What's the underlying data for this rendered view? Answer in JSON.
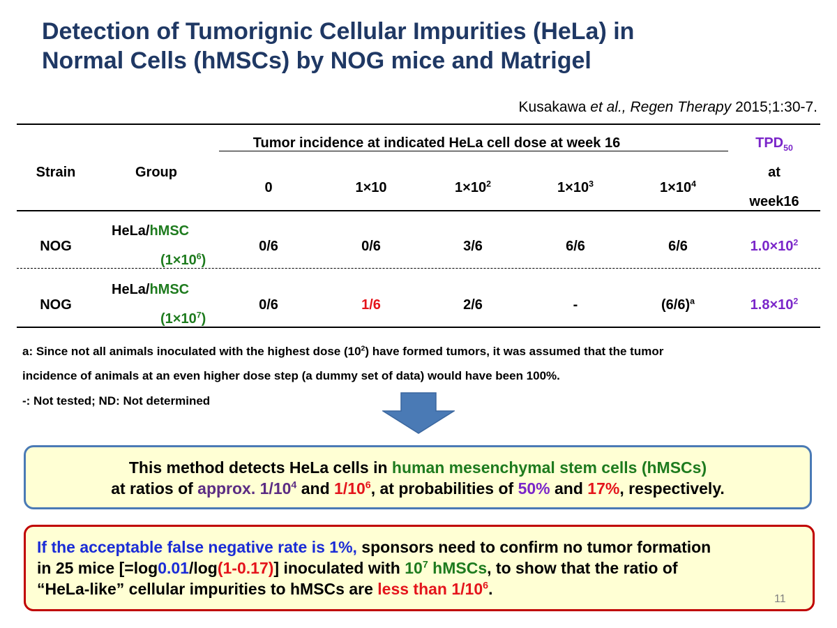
{
  "title": {
    "line1": "Detection of Tumorignic Cellular Impurities (HeLa) in",
    "line2": "Normal Cells (hMSCs) by NOG mice and Matrigel"
  },
  "citation": {
    "authors": "Kusakawa ",
    "etal": "et al., Regen Therapy",
    "ref": " 2015;1:30-7."
  },
  "table": {
    "headers": {
      "strain": "Strain",
      "group": "Group",
      "incidence": "Tumor incidence at indicated HeLa cell dose at week 16",
      "tpd_main": "TPD",
      "tpd_sub": "50",
      "tpd_at": "at",
      "tpd_week": "week16",
      "doses": [
        {
          "base": "0",
          "exp": ""
        },
        {
          "base": "1×10",
          "exp": ""
        },
        {
          "base": "1×10",
          "exp": "2"
        },
        {
          "base": "1×10",
          "exp": "3"
        },
        {
          "base": "1×10",
          "exp": "4"
        }
      ]
    },
    "rows": [
      {
        "strain": "NOG",
        "group_prefix": "HeLa/",
        "group_suffix": "hMSC",
        "dose_base": "(1×10",
        "dose_exp": "6",
        "dose_close": ")",
        "values": [
          "0/6",
          "0/6",
          "3/6",
          "6/6",
          "6/6"
        ],
        "tpd_base": "1.0×10",
        "tpd_exp": "2"
      },
      {
        "strain": "NOG",
        "group_prefix": "HeLa/",
        "group_suffix": "hMSC",
        "dose_base": "(1×10",
        "dose_exp": "7",
        "dose_close": ")",
        "values": [
          "0/6",
          "1/6",
          "2/6",
          "-",
          "(6/6)"
        ],
        "value_sup": "a",
        "tpd_base": "1.8×10",
        "tpd_exp": "2"
      }
    ]
  },
  "notes": {
    "a_line1_pre": "a: Since not all animals inoculated with the highest dose (10",
    "a_line1_exp": "2",
    "a_line1_post": ") have formed tumors, it was assumed that the tumor",
    "a_line2": "incidence of animals at an even higher dose step (a dummy set of data) would have been 100%.",
    "legend": "-: Not tested; ND: Not determined"
  },
  "box1": {
    "l1_a": "This method detects HeLa cells in ",
    "l1_b": "human mesenchymal stem cells (hMSCs)",
    "l2_a": "at ratios of ",
    "l2_b": "approx. 1/10",
    "l2_b_exp": "4",
    "l2_c": " and ",
    "l2_d": "1/10",
    "l2_d_exp": "6",
    "l2_e": ", at probabilities of ",
    "l2_f": "50%",
    "l2_g": " and ",
    "l2_h": "17%",
    "l2_i": ", respectively."
  },
  "box2": {
    "l1_a": "If the acceptable false negative rate is 1%,",
    "l1_b": " sponsors need to confirm no tumor formation",
    "l2_a": "in 25 mice [=log",
    "l2_b": "0.01",
    "l2_c": "/log",
    "l2_d": "(1-0.17)",
    "l2_e": "]   inoculated with ",
    "l2_f": "10",
    "l2_f_exp": "7",
    "l2_g": " hMSCs",
    "l2_h": ", to show that the ratio of",
    "l3_a": "“HeLa-like” cellular impurities to hMSCs are ",
    "l3_b": "less than 1/10",
    "l3_b_exp": "6",
    "l3_c": "."
  },
  "colors": {
    "title": "#1f3864",
    "green": "#1e7b1e",
    "red": "#e4141b",
    "purple": "#7a25c9",
    "blue": "#1a2cd6",
    "arrow": "#4a7ab5",
    "box1_border": "#4a7ab5",
    "box2_border": "#c00000",
    "box_fill": "#ffffd4"
  },
  "arrow_icon": "down-arrow-icon",
  "page_number": "11"
}
